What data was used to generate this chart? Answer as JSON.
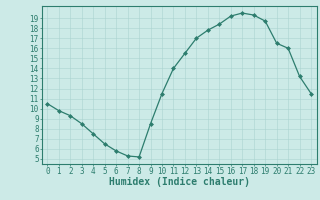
{
  "x": [
    0,
    1,
    2,
    3,
    4,
    5,
    6,
    7,
    8,
    9,
    10,
    11,
    12,
    13,
    14,
    15,
    16,
    17,
    18,
    19,
    20,
    21,
    22,
    23
  ],
  "y": [
    10.5,
    9.8,
    9.3,
    8.5,
    7.5,
    6.5,
    5.8,
    5.3,
    5.2,
    8.5,
    11.5,
    14.0,
    15.5,
    17.0,
    17.8,
    18.4,
    19.2,
    19.5,
    19.3,
    18.7,
    16.5,
    16.0,
    13.2,
    11.5
  ],
  "bg_color": "#cceae7",
  "line_color": "#2d7d6e",
  "marker": "D",
  "markersize": 2.0,
  "linewidth": 0.9,
  "xlabel": "Humidex (Indice chaleur)",
  "xlabel_fontsize": 7,
  "xlim": [
    -0.5,
    23.5
  ],
  "ylim": [
    4.5,
    20.2
  ],
  "yticks": [
    5,
    6,
    7,
    8,
    9,
    10,
    11,
    12,
    13,
    14,
    15,
    16,
    17,
    18,
    19
  ],
  "xticks": [
    0,
    1,
    2,
    3,
    4,
    5,
    6,
    7,
    8,
    9,
    10,
    11,
    12,
    13,
    14,
    15,
    16,
    17,
    18,
    19,
    20,
    21,
    22,
    23
  ],
  "tick_fontsize": 5.5,
  "grid_color": "#aad4d0",
  "grid_linewidth": 0.4,
  "axis_color": "#2d7d6e",
  "spine_linewidth": 0.8
}
